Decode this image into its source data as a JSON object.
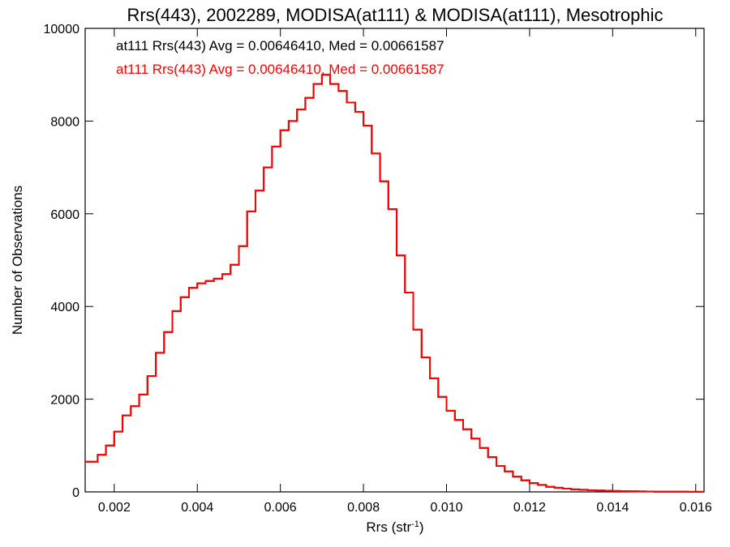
{
  "chart_data": {
    "type": "line",
    "title": "Rrs(443), 2002289, MODISA(at111) & MODISA(at111), Mesotrophic",
    "xlabel": "Rrs (str",
    "xlabel_sup": "-1",
    "xlabel_end": ")",
    "ylabel": "Number of Observations",
    "xlim": [
      0.0013,
      0.0162
    ],
    "ylim": [
      0,
      10000
    ],
    "xticks": [
      0.002,
      0.004,
      0.006,
      0.008,
      0.01,
      0.012,
      0.014,
      0.016
    ],
    "xtick_labels": [
      "0.002",
      "0.004",
      "0.006",
      "0.008",
      "0.010",
      "0.012",
      "0.014",
      "0.016"
    ],
    "yticks": [
      0,
      2000,
      4000,
      6000,
      8000,
      10000
    ],
    "ytick_labels": [
      "0",
      "2000",
      "4000",
      "6000",
      "8000",
      "10000"
    ],
    "grid": false,
    "annotations": [
      {
        "text": "at111 Rrs(443) Avg = 0.00646410, Med = 0.00661587",
        "color": "#000000"
      },
      {
        "text": "at111 Rrs(443) Avg = 0.00646410, Med = 0.00661587",
        "color": "#ff0000"
      }
    ],
    "series": [
      {
        "color": "#000000",
        "x": [
          0.0013,
          0.0016,
          0.0018,
          0.002,
          0.0022,
          0.0024,
          0.0026,
          0.0028,
          0.003,
          0.0032,
          0.0034,
          0.0036,
          0.0038,
          0.004,
          0.0042,
          0.0044,
          0.0046,
          0.0048,
          0.005,
          0.0052,
          0.0054,
          0.0056,
          0.0058,
          0.006,
          0.0062,
          0.0064,
          0.0066,
          0.0068,
          0.007,
          0.0072,
          0.0074,
          0.0076,
          0.0078,
          0.008,
          0.0082,
          0.0084,
          0.0086,
          0.0088,
          0.009,
          0.0092,
          0.0094,
          0.0096,
          0.0098,
          0.01,
          0.0102,
          0.0104,
          0.0106,
          0.0108,
          0.011,
          0.0112,
          0.0114,
          0.0116,
          0.0118,
          0.012,
          0.0122,
          0.0124,
          0.0126,
          0.0128,
          0.013,
          0.0132,
          0.0134,
          0.0136,
          0.0138,
          0.014,
          0.0142,
          0.0144,
          0.0146,
          0.0148,
          0.015,
          0.0152,
          0.0154,
          0.0156,
          0.0158,
          0.016,
          0.0162
        ],
        "y": [
          650,
          800,
          1000,
          1300,
          1650,
          1850,
          2100,
          2500,
          3000,
          3450,
          3900,
          4200,
          4400,
          4500,
          4550,
          4600,
          4700,
          4900,
          5300,
          6050,
          6500,
          7000,
          7450,
          7800,
          8000,
          8250,
          8500,
          8800,
          9000,
          8800,
          8650,
          8400,
          8200,
          7900,
          7300,
          6700,
          6100,
          5100,
          4300,
          3500,
          2900,
          2450,
          2050,
          1750,
          1550,
          1350,
          1150,
          950,
          750,
          560,
          440,
          330,
          250,
          190,
          150,
          110,
          90,
          70,
          55,
          45,
          35,
          30,
          25,
          20,
          15,
          12,
          10,
          8,
          6,
          5,
          4,
          3,
          2,
          2,
          1
        ]
      },
      {
        "color": "#ff0000",
        "x": [
          0.0013,
          0.0016,
          0.0018,
          0.002,
          0.0022,
          0.0024,
          0.0026,
          0.0028,
          0.003,
          0.0032,
          0.0034,
          0.0036,
          0.0038,
          0.004,
          0.0042,
          0.0044,
          0.0046,
          0.0048,
          0.005,
          0.0052,
          0.0054,
          0.0056,
          0.0058,
          0.006,
          0.0062,
          0.0064,
          0.0066,
          0.0068,
          0.007,
          0.0072,
          0.0074,
          0.0076,
          0.0078,
          0.008,
          0.0082,
          0.0084,
          0.0086,
          0.0088,
          0.009,
          0.0092,
          0.0094,
          0.0096,
          0.0098,
          0.01,
          0.0102,
          0.0104,
          0.0106,
          0.0108,
          0.011,
          0.0112,
          0.0114,
          0.0116,
          0.0118,
          0.012,
          0.0122,
          0.0124,
          0.0126,
          0.0128,
          0.013,
          0.0132,
          0.0134,
          0.0136,
          0.0138,
          0.014,
          0.0142,
          0.0144,
          0.0146,
          0.0148,
          0.015,
          0.0152,
          0.0154,
          0.0156,
          0.0158,
          0.016,
          0.0162
        ],
        "y": [
          650,
          800,
          1000,
          1300,
          1650,
          1850,
          2100,
          2500,
          3000,
          3450,
          3900,
          4200,
          4400,
          4500,
          4550,
          4600,
          4700,
          4900,
          5300,
          6050,
          6500,
          7000,
          7450,
          7800,
          8000,
          8250,
          8500,
          8800,
          9000,
          8800,
          8650,
          8400,
          8200,
          7900,
          7300,
          6700,
          6100,
          5100,
          4300,
          3500,
          2900,
          2450,
          2050,
          1750,
          1550,
          1350,
          1150,
          950,
          750,
          560,
          440,
          330,
          250,
          190,
          150,
          110,
          90,
          70,
          55,
          45,
          35,
          30,
          25,
          20,
          15,
          12,
          10,
          8,
          6,
          5,
          4,
          3,
          2,
          2,
          1
        ]
      }
    ]
  }
}
